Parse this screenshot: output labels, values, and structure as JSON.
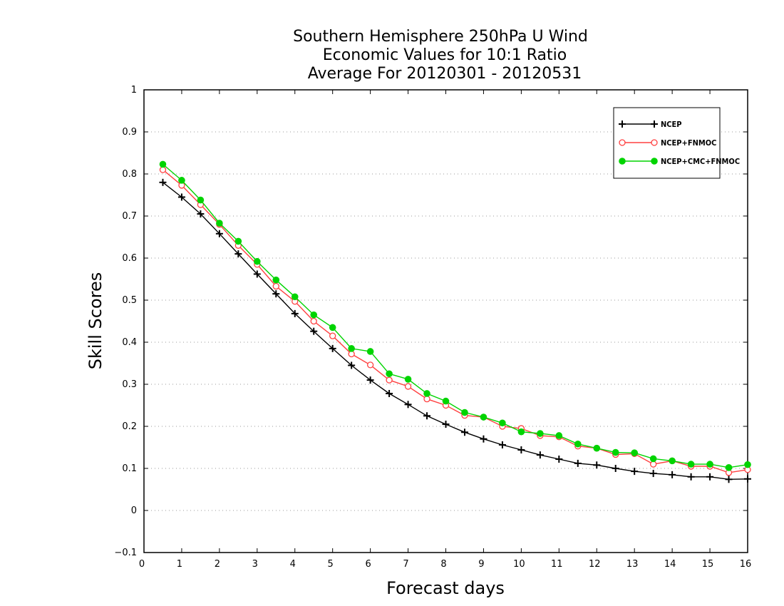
{
  "chart_data": {
    "type": "line",
    "title_lines": [
      "Southern Hemisphere 250hPa U Wind",
      "Economic Values for 10:1 Ratio",
      "Average For 20120301 - 20120531"
    ],
    "xlabel": "Forecast days",
    "ylabel": "Skill Scores",
    "xlim": [
      0,
      16
    ],
    "ylim": [
      -0.1,
      1
    ],
    "x_ticks": [
      0,
      1,
      2,
      3,
      4,
      5,
      6,
      7,
      8,
      9,
      10,
      11,
      12,
      13,
      14,
      15,
      16
    ],
    "y_ticks": [
      -0.1,
      0,
      0.1,
      0.2,
      0.3,
      0.4,
      0.5,
      0.6,
      0.7,
      0.8,
      0.9,
      1
    ],
    "x_tick_labels": [
      "0",
      "1",
      "2",
      "3",
      "4",
      "5",
      "6",
      "7",
      "8",
      "9",
      "10",
      "11",
      "12",
      "13",
      "14",
      "15",
      "16"
    ],
    "y_tick_labels": [
      "−0.1",
      "0",
      "0.1",
      "0.2",
      "0.3",
      "0.4",
      "0.5",
      "0.6",
      "0.7",
      "0.8",
      "0.9",
      "1"
    ],
    "grid": "horizontal dotted",
    "legend_position": "top-right",
    "x": [
      0.5,
      1,
      1.5,
      2,
      2.5,
      3,
      3.5,
      4,
      4.5,
      5,
      5.5,
      6,
      6.5,
      7,
      7.5,
      8,
      8.5,
      9,
      9.5,
      10,
      10.5,
      11,
      11.5,
      12,
      12.5,
      13,
      13.5,
      14,
      14.5,
      15,
      15.5,
      16
    ],
    "series": [
      {
        "name": "NCEP",
        "color": "#000000",
        "marker": "plus",
        "values": [
          0.78,
          0.745,
          0.705,
          0.658,
          0.61,
          0.562,
          0.515,
          0.468,
          0.426,
          0.385,
          0.345,
          0.31,
          0.278,
          0.252,
          0.225,
          0.205,
          0.186,
          0.17,
          0.156,
          0.144,
          0.132,
          0.122,
          0.112,
          0.108,
          0.1,
          0.093,
          0.088,
          0.085,
          0.08,
          0.08,
          0.074,
          0.075
        ]
      },
      {
        "name": "NCEP+FNMOC",
        "color": "#ff4040",
        "marker": "open-circle",
        "values": [
          0.81,
          0.773,
          0.727,
          0.68,
          0.63,
          0.585,
          0.533,
          0.497,
          0.45,
          0.415,
          0.372,
          0.346,
          0.31,
          0.295,
          0.265,
          0.25,
          0.226,
          0.222,
          0.2,
          0.195,
          0.178,
          0.175,
          0.153,
          0.148,
          0.133,
          0.135,
          0.11,
          0.118,
          0.105,
          0.105,
          0.09,
          0.097
        ]
      },
      {
        "name": "NCEP+CMC+FNMOC",
        "color": "#00d400",
        "marker": "filled-circle",
        "values": [
          0.823,
          0.785,
          0.738,
          0.683,
          0.64,
          0.592,
          0.548,
          0.508,
          0.465,
          0.435,
          0.385,
          0.378,
          0.325,
          0.312,
          0.278,
          0.26,
          0.233,
          0.222,
          0.208,
          0.187,
          0.183,
          0.178,
          0.158,
          0.148,
          0.138,
          0.137,
          0.123,
          0.118,
          0.11,
          0.11,
          0.102,
          0.109
        ]
      }
    ]
  }
}
